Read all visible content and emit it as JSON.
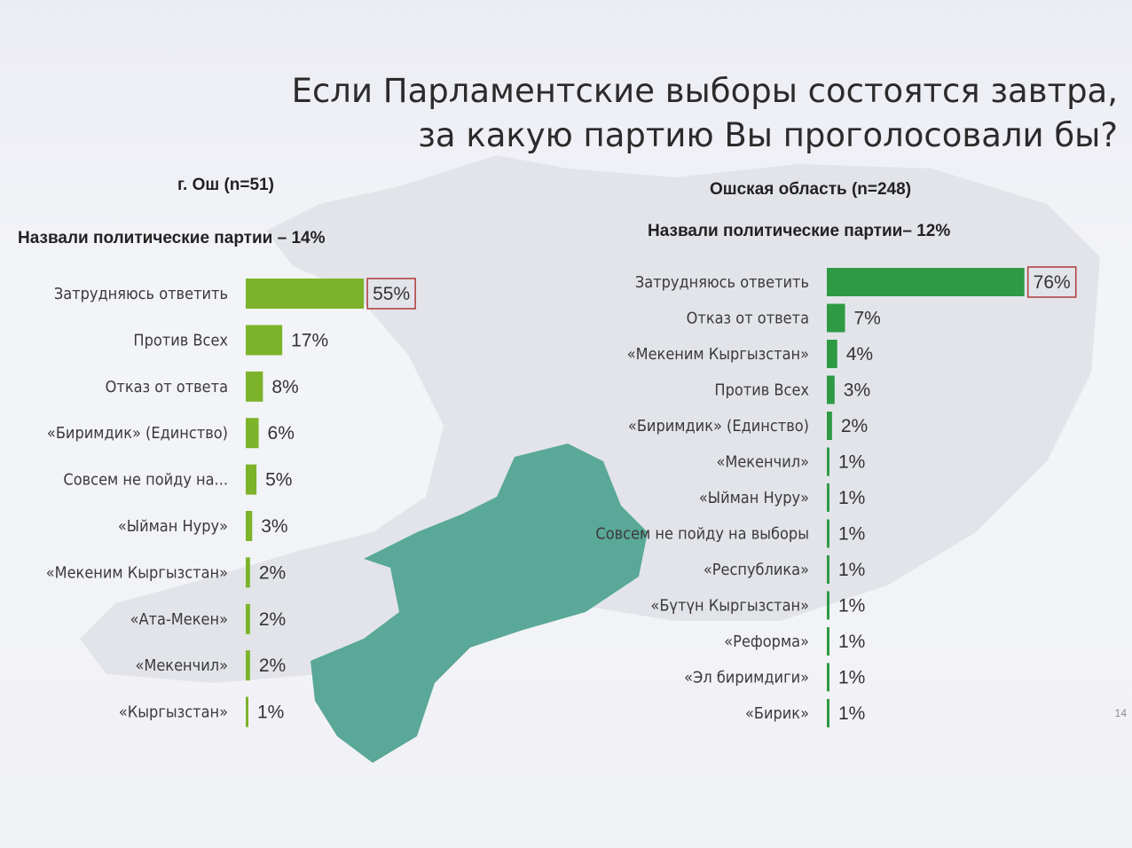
{
  "title_line1": "Если Парламентские выборы состоятся завтра,",
  "title_line2": "за какую партию Вы проголосовали бы?",
  "left_panel": {
    "header": "г. Ош (n=51)",
    "subheader": "Назвали политические партии – 14%"
  },
  "right_panel": {
    "header": "Ошская область (n=248)",
    "subheader": "Назвали политические партии– 12%"
  },
  "page_number": "14",
  "colors": {
    "left_bar": "#7cb32a",
    "right_bar": "#2e9a44",
    "highlight_box": "#b03a3a",
    "map_highlight": "#5aa897",
    "map_base": "#e3e5ea"
  },
  "chart_data": [
    {
      "type": "bar",
      "orientation": "horizontal",
      "title": "г. Ош (n=51)",
      "categories": [
        "Затрудняюсь ответить",
        "Против Всех",
        "Отказ от ответа",
        "«Биримдик» (Единство)",
        "Совсем не пойду на...",
        "«Ыйман Нуру»",
        "«Мекеним Кыргызстан»",
        "«Ата-Мекен»",
        "«Мекенчил»",
        "«Кыргызстан»"
      ],
      "values": [
        55,
        17,
        8,
        6,
        5,
        3,
        2,
        2,
        2,
        1
      ],
      "value_labels": [
        "55%",
        "17%",
        "8%",
        "6%",
        "5%",
        "3%",
        "2%",
        "2%",
        "2%",
        "1%"
      ],
      "highlighted_index": 0,
      "xlim": [
        0,
        100
      ]
    },
    {
      "type": "bar",
      "orientation": "horizontal",
      "title": "Ошская область (n=248)",
      "categories": [
        "Затрудняюсь ответить",
        "Отказ от ответа",
        "«Мекеним Кыргызстан»",
        "Против Всех",
        "«Биримдик» (Единство)",
        "«Мекенчил»",
        "«Ыйман Нуру»",
        "Совсем не пойду на выборы",
        "«Республика»",
        "«Бүтүн Кыргызстан»",
        "«Реформа»",
        "«Эл биримдиги»",
        "«Бирик»"
      ],
      "values": [
        76,
        7,
        4,
        3,
        2,
        1,
        1,
        1,
        1,
        1,
        1,
        1,
        1
      ],
      "value_labels": [
        "76%",
        "7%",
        "4%",
        "3%",
        "2%",
        "1%",
        "1%",
        "1%",
        "1%",
        "1%",
        "1%",
        "1%",
        "1%"
      ],
      "highlighted_index": 0,
      "xlim": [
        0,
        100
      ]
    }
  ]
}
